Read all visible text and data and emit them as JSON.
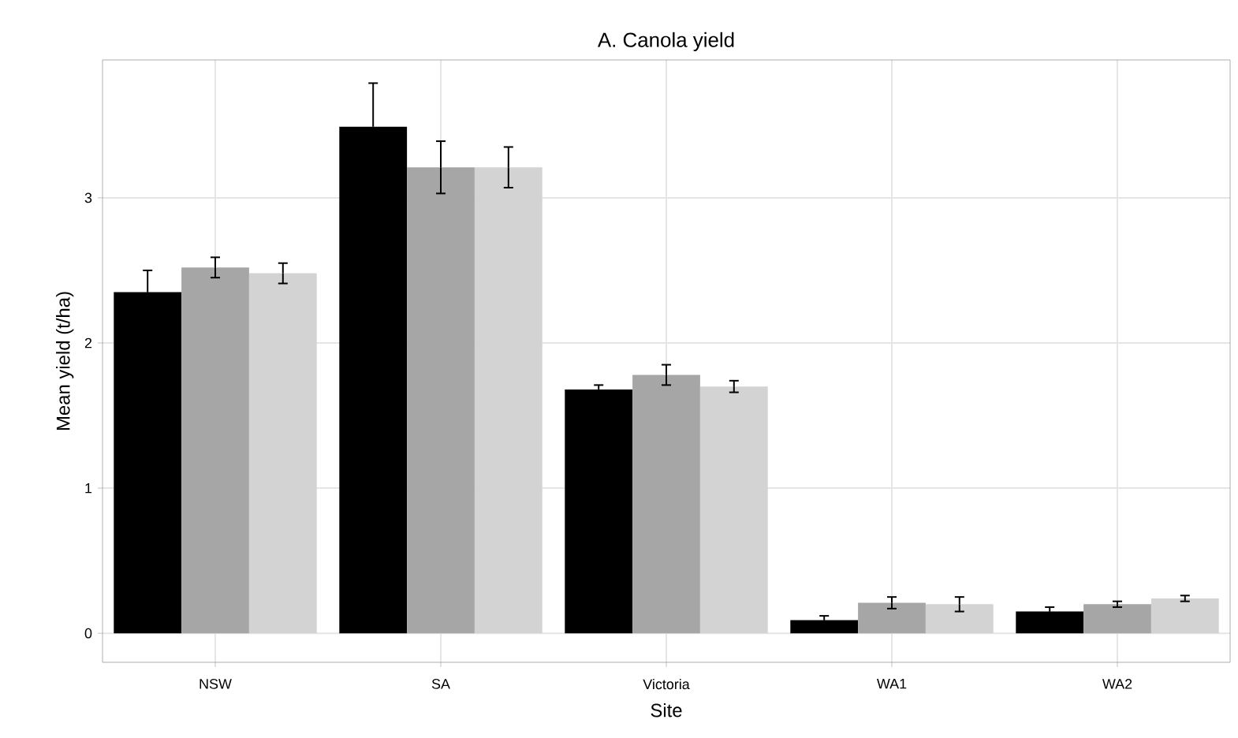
{
  "chart_data": {
    "type": "bar",
    "title": "A. Canola yield",
    "xlabel": "Site",
    "ylabel": "Mean yield (t/ha)",
    "categories": [
      "NSW",
      "SA",
      "Victoria",
      "WA1",
      "WA2"
    ],
    "series": [
      {
        "color": "#000000",
        "values": [
          2.35,
          3.49,
          1.68,
          0.09,
          0.15
        ],
        "errors": [
          0.15,
          0.3,
          0.03,
          0.03,
          0.03
        ]
      },
      {
        "color": "#a6a6a6",
        "values": [
          2.52,
          3.21,
          1.78,
          0.21,
          0.2
        ],
        "errors": [
          0.07,
          0.18,
          0.07,
          0.04,
          0.02
        ]
      },
      {
        "color": "#d3d3d3",
        "values": [
          2.48,
          3.21,
          1.7,
          0.2,
          0.24
        ],
        "errors": [
          0.07,
          0.14,
          0.04,
          0.05,
          0.02
        ]
      }
    ],
    "ylim": [
      -0.2,
      3.95
    ],
    "yticks": [
      0,
      1,
      2,
      3
    ],
    "grid": true
  }
}
